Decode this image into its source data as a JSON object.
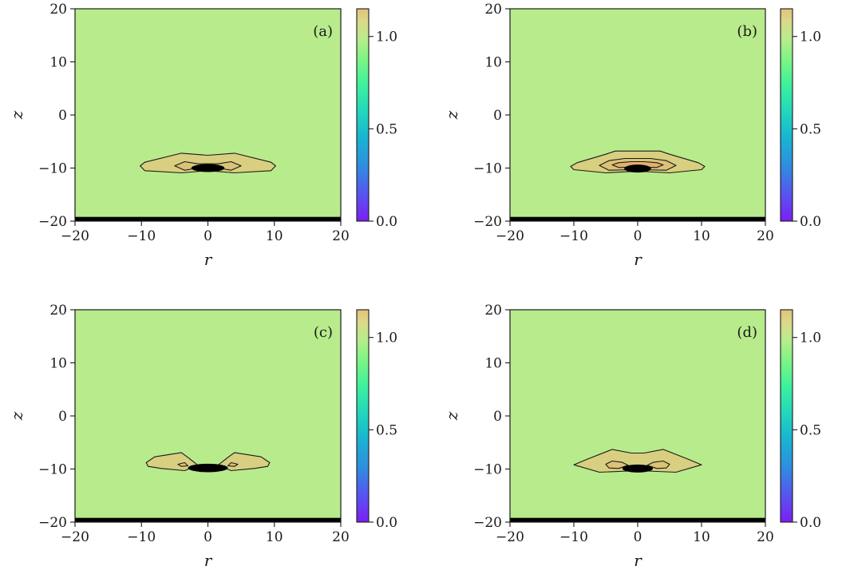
{
  "chart_data": [
    {
      "type": "heatmap",
      "panel_label": "(a)",
      "xlabel": "r",
      "ylabel": "z",
      "xlim": [
        -20,
        20
      ],
      "ylim": [
        -20,
        20
      ],
      "x_ticks": [
        -20,
        -10,
        0,
        10,
        20
      ],
      "y_ticks": [
        -20,
        -10,
        0,
        10,
        20
      ],
      "x_tick_labels": [
        "−20",
        "−10",
        "0",
        "10",
        "20"
      ],
      "y_tick_labels": [
        "−20",
        "−10",
        "0",
        "10",
        "20"
      ],
      "background_value": 0.85,
      "colorbar": {
        "range": [
          0.0,
          1.15
        ],
        "ticks": [
          0.0,
          0.5,
          1.0
        ],
        "tick_labels": [
          "0.0",
          "0.5",
          "1.0"
        ]
      },
      "bottom_band": {
        "z_range": [
          -20,
          -19.2
        ]
      },
      "contours": [
        {
          "level": 1.05,
          "color": "#d8cf80",
          "points": [
            [
              -10.2,
              -9.6
            ],
            [
              -9.5,
              -8.9
            ],
            [
              -4,
              -7.2
            ],
            [
              0,
              -7.6
            ],
            [
              4,
              -7.2
            ],
            [
              9.5,
              -8.9
            ],
            [
              10.2,
              -9.6
            ],
            [
              9.5,
              -10.5
            ],
            [
              4,
              -10.9
            ],
            [
              0,
              -10.5
            ],
            [
              -4,
              -10.9
            ],
            [
              -9.5,
              -10.5
            ]
          ]
        },
        {
          "level": 1.1,
          "color": "#dcc277",
          "points": [
            [
              -5,
              -9.6
            ],
            [
              -3.5,
              -8.8
            ],
            [
              -1.5,
              -9.2
            ],
            [
              0,
              -9.2
            ],
            [
              1.5,
              -9.2
            ],
            [
              3.5,
              -8.8
            ],
            [
              5,
              -9.6
            ],
            [
              3.5,
              -10.4
            ],
            [
              1.5,
              -10
            ],
            [
              0,
              -10.2
            ],
            [
              -1.5,
              -10
            ],
            [
              -3.5,
              -10.4
            ]
          ]
        }
      ],
      "core": {
        "z": -10,
        "half_width_r": 2.5,
        "half_height_z": 0.75
      }
    },
    {
      "type": "heatmap",
      "panel_label": "(b)",
      "xlabel": "r",
      "ylabel": "z",
      "xlim": [
        -20,
        20
      ],
      "ylim": [
        -20,
        20
      ],
      "x_ticks": [
        -20,
        -10,
        0,
        10,
        20
      ],
      "y_ticks": [
        -20,
        -10,
        0,
        10,
        20
      ],
      "x_tick_labels": [
        "−20",
        "−10",
        "0",
        "10",
        "20"
      ],
      "y_tick_labels": [
        "−20",
        "−10",
        "0",
        "10",
        "20"
      ],
      "background_value": 0.85,
      "colorbar": {
        "range": [
          0.0,
          1.15
        ],
        "ticks": [
          0.0,
          0.5,
          1.0
        ],
        "tick_labels": [
          "0.0",
          "0.5",
          "1.0"
        ]
      },
      "bottom_band": {
        "z_range": [
          -20,
          -19.2
        ]
      },
      "contours": [
        {
          "level": 1.05,
          "color": "#d8cf80",
          "points": [
            [
              -10.5,
              -9.7
            ],
            [
              -9.5,
              -9
            ],
            [
              -5,
              -7.4
            ],
            [
              -3.5,
              -6.8
            ],
            [
              3.5,
              -6.8
            ],
            [
              5,
              -7.4
            ],
            [
              9.5,
              -9
            ],
            [
              10.5,
              -9.7
            ],
            [
              10,
              -10.3
            ],
            [
              5,
              -10.9
            ],
            [
              0,
              -10.6
            ],
            [
              -5,
              -10.9
            ],
            [
              -10,
              -10.3
            ]
          ]
        },
        {
          "level": 1.1,
          "color": "#dcc277",
          "points": [
            [
              -6,
              -9.5
            ],
            [
              -4.5,
              -8.6
            ],
            [
              -2,
              -8.2
            ],
            [
              2,
              -8.2
            ],
            [
              4.5,
              -8.6
            ],
            [
              6,
              -9.5
            ],
            [
              4.5,
              -10.4
            ],
            [
              0,
              -10.3
            ],
            [
              -4.5,
              -10.4
            ]
          ]
        },
        {
          "level": 1.15,
          "color": "#e3b06e",
          "points": [
            [
              -4,
              -9.4
            ],
            [
              -3,
              -9
            ],
            [
              -1,
              -8.8
            ],
            [
              1,
              -8.8
            ],
            [
              3,
              -9
            ],
            [
              4,
              -9.4
            ],
            [
              3,
              -9.9
            ],
            [
              0,
              -9.8
            ],
            [
              -3,
              -9.9
            ]
          ]
        }
      ],
      "core": {
        "z": -10.1,
        "half_width_r": 2.1,
        "half_height_z": 0.75
      }
    },
    {
      "type": "heatmap",
      "panel_label": "(c)",
      "xlabel": "r",
      "ylabel": "z",
      "xlim": [
        -20,
        20
      ],
      "ylim": [
        -20,
        20
      ],
      "x_ticks": [
        -20,
        -10,
        0,
        10,
        20
      ],
      "y_ticks": [
        -20,
        -10,
        0,
        10,
        20
      ],
      "x_tick_labels": [
        "−20",
        "−10",
        "0",
        "10",
        "20"
      ],
      "y_tick_labels": [
        "−20",
        "−10",
        "0",
        "10",
        "20"
      ],
      "background_value": 0.85,
      "colorbar": {
        "range": [
          0.0,
          1.15
        ],
        "ticks": [
          0.0,
          0.5,
          1.0
        ],
        "tick_labels": [
          "0.0",
          "0.5",
          "1.0"
        ]
      },
      "bottom_band": {
        "z_range": [
          -20,
          -19.2
        ]
      },
      "contours": [
        {
          "level": 1.05,
          "color": "#d8cf80",
          "points": [
            [
              -9.3,
              -8.8
            ],
            [
              -8,
              -7.7
            ],
            [
              -4,
              -6.9
            ],
            [
              -3,
              -7.8
            ],
            [
              -1.5,
              -9.3
            ],
            [
              -3.5,
              -10.3
            ],
            [
              -7,
              -9.9
            ],
            [
              -9,
              -9.5
            ]
          ]
        },
        {
          "level": 1.05,
          "color": "#d8cf80",
          "points": [
            [
              9.3,
              -8.8
            ],
            [
              8,
              -7.7
            ],
            [
              4,
              -6.9
            ],
            [
              3,
              -7.8
            ],
            [
              1.5,
              -9.3
            ],
            [
              3.5,
              -10.3
            ],
            [
              7,
              -9.9
            ],
            [
              9,
              -9.5
            ]
          ]
        },
        {
          "level": 1.1,
          "color": "#dcc277",
          "points": [
            [
              -4.5,
              -9.1
            ],
            [
              -3.5,
              -8.8
            ],
            [
              -3,
              -9.4
            ],
            [
              -4,
              -9.5
            ]
          ]
        },
        {
          "level": 1.1,
          "color": "#dcc277",
          "points": [
            [
              4.5,
              -9.1
            ],
            [
              3.5,
              -8.8
            ],
            [
              3,
              -9.4
            ],
            [
              4,
              -9.5
            ]
          ]
        }
      ],
      "core": {
        "z": -9.8,
        "half_width_r": 3.0,
        "half_height_z": 0.8
      }
    },
    {
      "type": "heatmap",
      "panel_label": "(d)",
      "xlabel": "r",
      "ylabel": "z",
      "xlim": [
        -20,
        20
      ],
      "ylim": [
        -20,
        20
      ],
      "x_ticks": [
        -20,
        -10,
        0,
        10,
        20
      ],
      "y_ticks": [
        -20,
        -10,
        0,
        10,
        20
      ],
      "x_tick_labels": [
        "−20",
        "−10",
        "0",
        "10",
        "20"
      ],
      "y_tick_labels": [
        "−20",
        "−10",
        "0",
        "10",
        "20"
      ],
      "background_value": 0.85,
      "colorbar": {
        "range": [
          0.0,
          1.15
        ],
        "ticks": [
          0.0,
          0.5,
          1.0
        ],
        "tick_labels": [
          "0.0",
          "0.5",
          "1.0"
        ]
      },
      "bottom_band": {
        "z_range": [
          -20,
          -19.2
        ]
      },
      "contours": [
        {
          "level": 1.05,
          "color": "#d8cf80",
          "points": [
            [
              -10,
              -9.2
            ],
            [
              -8,
              -8.2
            ],
            [
              -4,
              -6.3
            ],
            [
              -1,
              -7
            ],
            [
              1,
              -7
            ],
            [
              4,
              -6.3
            ],
            [
              8,
              -8.2
            ],
            [
              10,
              -9.2
            ],
            [
              6,
              -10.6
            ],
            [
              0,
              -10.3
            ],
            [
              -6,
              -10.6
            ]
          ]
        },
        {
          "level": 1.1,
          "color": "#dcc277",
          "points": [
            [
              -5,
              -9.1
            ],
            [
              -4,
              -8.5
            ],
            [
              -2.5,
              -8.7
            ],
            [
              -1.5,
              -9.3
            ],
            [
              -3,
              -9.9
            ],
            [
              -4.5,
              -9.8
            ]
          ]
        },
        {
          "level": 1.1,
          "color": "#dcc277",
          "points": [
            [
              5,
              -9.1
            ],
            [
              4,
              -8.5
            ],
            [
              2.5,
              -8.7
            ],
            [
              1.5,
              -9.3
            ],
            [
              3,
              -9.9
            ],
            [
              4.5,
              -9.8
            ]
          ]
        }
      ],
      "core": {
        "z": -9.9,
        "half_width_r": 2.4,
        "half_height_z": 0.75
      }
    }
  ]
}
